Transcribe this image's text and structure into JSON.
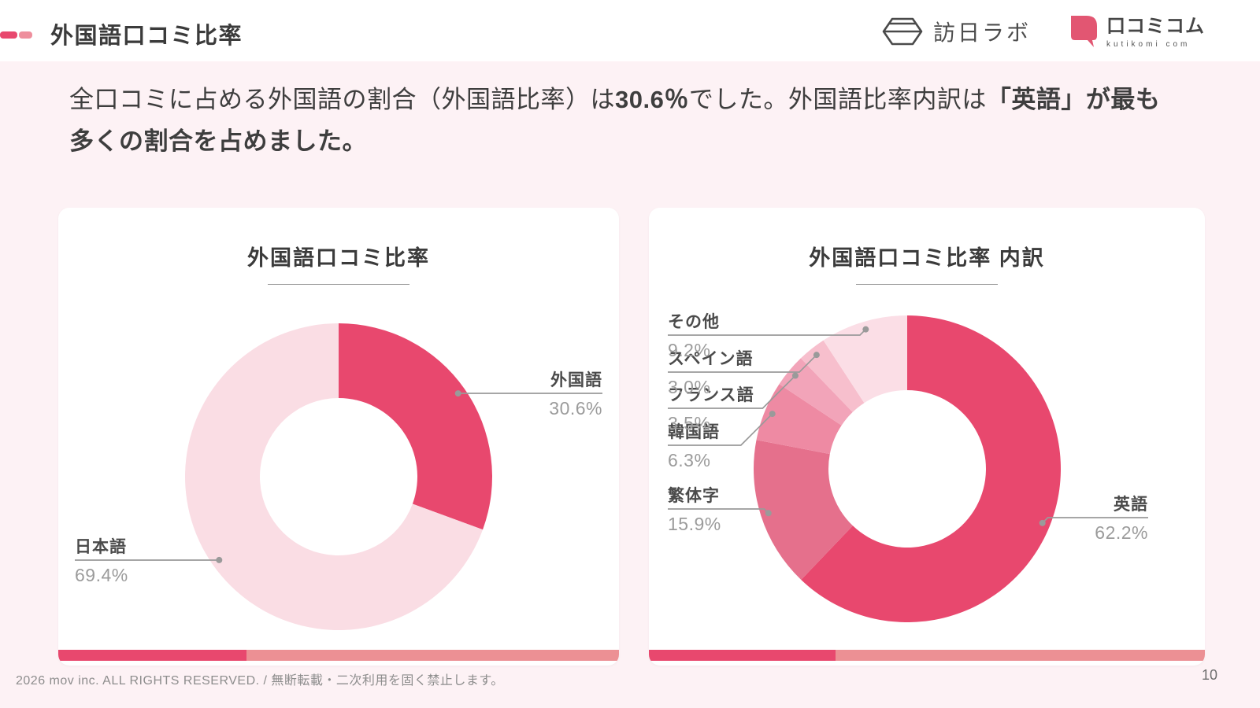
{
  "header": {
    "title": "外国語口コミ比率",
    "accent_dark": "#e8486e",
    "accent_light": "#ee8f9d"
  },
  "logos": {
    "hounichi_lab": {
      "name": "訪日ラボ"
    },
    "kutikomicom": {
      "name": "口コミコム",
      "tagline": "kutikomi com",
      "brand_color": "#e25672"
    }
  },
  "intro": {
    "seg1": "全口コミに占める外国語の割合（外国語比率）は",
    "seg2": "30.6％",
    "seg3": "でした。外国語比率内訳は",
    "seg4": "「英語」",
    "seg5": "が最も多くの割合を占めました。"
  },
  "chart_data": [
    {
      "type": "pie",
      "subtype": "donut",
      "title": "外国語口コミ比率",
      "labels": [
        "外国語",
        "日本語"
      ],
      "values": [
        30.6,
        69.4
      ],
      "display_values": [
        "30.6%",
        "69.4%"
      ],
      "colors": [
        "#e8486e",
        "#fadde4"
      ],
      "start_angle_deg": 0,
      "direction": "clockwise",
      "legend_position": "callout-labels"
    },
    {
      "type": "pie",
      "subtype": "donut",
      "title": "外国語口コミ比率 内訳",
      "labels": [
        "英語",
        "繁体字",
        "韓国語",
        "フランス語",
        "スペイン語",
        "その他"
      ],
      "values": [
        62.2,
        15.9,
        6.3,
        3.5,
        3.0,
        9.2
      ],
      "display_values": [
        "62.2%",
        "15.9%",
        "6.3%",
        "3.5%",
        "3.0%",
        "9.2%"
      ],
      "colors": [
        "#e8486e",
        "#e5708c",
        "#ee8aa3",
        "#f2a4b9",
        "#f7bfcd",
        "#fbdee6"
      ],
      "start_angle_deg": 0,
      "direction": "clockwise",
      "legend_position": "callout-labels"
    }
  ],
  "card_bar": {
    "dark": "#e8486e",
    "light": "#ec9094"
  },
  "footer": {
    "copyright": "2026 mov inc. ALL RIGHTS RESERVED. / 無断転載・二次利用を固く禁止します。",
    "page_number": "10"
  }
}
